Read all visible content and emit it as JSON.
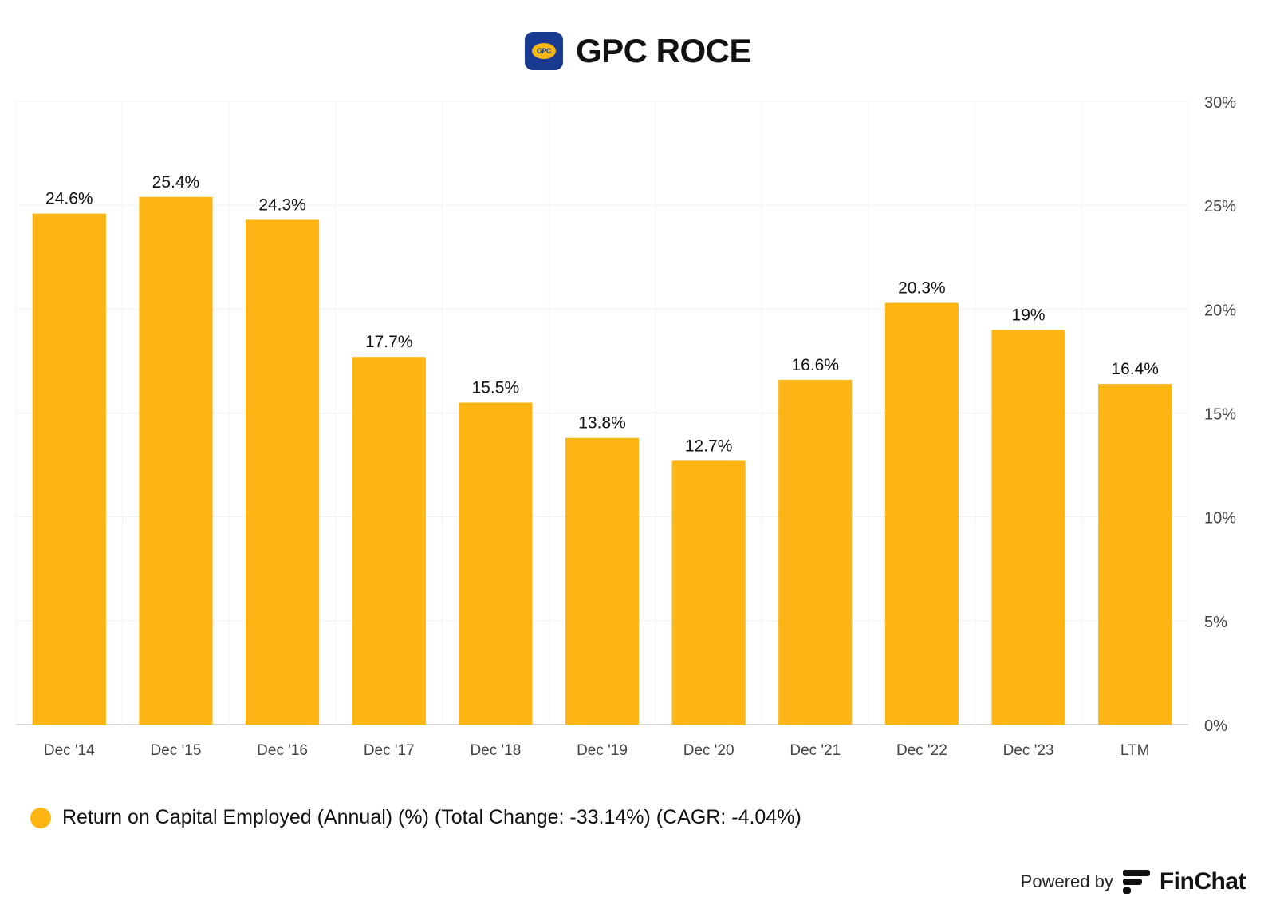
{
  "header": {
    "title": "GPC ROCE",
    "logo_text": "GPC"
  },
  "chart_data": {
    "type": "bar",
    "categories": [
      "Dec '14",
      "Dec '15",
      "Dec '16",
      "Dec '17",
      "Dec '18",
      "Dec '19",
      "Dec '20",
      "Dec '21",
      "Dec '22",
      "Dec '23",
      "LTM"
    ],
    "values": [
      24.6,
      25.4,
      24.3,
      17.7,
      15.5,
      13.8,
      12.7,
      16.6,
      20.3,
      19,
      16.4
    ],
    "value_labels": [
      "24.6%",
      "25.4%",
      "24.3%",
      "17.7%",
      "15.5%",
      "13.8%",
      "12.7%",
      "16.6%",
      "20.3%",
      "19%",
      "16.4%"
    ],
    "y_ticks": [
      0,
      5,
      10,
      15,
      20,
      25,
      30
    ],
    "y_tick_labels": [
      "0%",
      "5%",
      "10%",
      "15%",
      "20%",
      "25%",
      "30%"
    ],
    "ylim": [
      0,
      30
    ],
    "y_axis_side": "right",
    "grid": true,
    "color": "#fdb515",
    "legend_position": "bottom-left"
  },
  "legend": {
    "label": "Return on Capital Employed (Annual) (%) (Total Change: -33.14%) (CAGR: -4.04%)"
  },
  "footer": {
    "powered_by": "Powered by",
    "brand": "FinChat"
  }
}
